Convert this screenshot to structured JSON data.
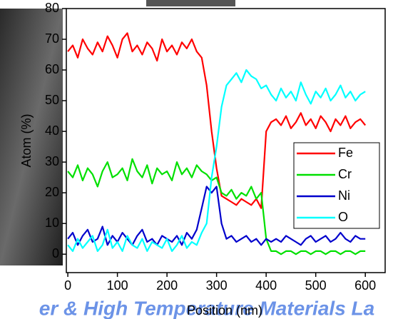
{
  "chart_data": {
    "type": "line",
    "xlabel": "Position (nm)",
    "ylabel": "Atom (%)",
    "watermark": "er & High Temperature Materials La",
    "x": [
      0,
      10,
      20,
      30,
      40,
      50,
      60,
      70,
      80,
      90,
      100,
      110,
      120,
      130,
      140,
      150,
      160,
      170,
      180,
      190,
      200,
      210,
      220,
      230,
      240,
      250,
      260,
      270,
      280,
      290,
      300,
      310,
      320,
      330,
      340,
      350,
      360,
      370,
      380,
      390,
      400,
      410,
      420,
      430,
      440,
      450,
      460,
      470,
      480,
      490,
      500,
      510,
      520,
      530,
      540,
      550,
      560,
      570,
      580,
      590,
      600
    ],
    "series": [
      {
        "name": "Fe",
        "color": "#ff0000",
        "values": [
          66,
          68,
          64,
          70,
          67,
          65,
          69,
          66,
          71,
          68,
          64,
          70,
          72,
          66,
          68,
          65,
          69,
          67,
          63,
          70,
          66,
          68,
          65,
          69,
          67,
          70,
          66,
          64,
          55,
          40,
          28,
          19,
          18,
          17,
          16,
          18,
          17,
          16,
          18,
          15,
          40,
          43,
          44,
          42,
          45,
          41,
          43,
          46,
          42,
          44,
          41,
          45,
          43,
          40,
          44,
          42,
          45,
          41,
          43,
          44,
          42
        ]
      },
      {
        "name": "Cr",
        "color": "#00e000",
        "values": [
          27,
          25,
          29,
          24,
          28,
          26,
          22,
          27,
          30,
          25,
          26,
          28,
          24,
          31,
          27,
          25,
          29,
          23,
          28,
          26,
          27,
          24,
          30,
          26,
          28,
          25,
          29,
          27,
          26,
          24,
          25,
          20,
          19,
          21,
          18,
          20,
          19,
          22,
          18,
          20,
          5,
          1,
          1,
          0,
          1,
          1,
          0,
          1,
          1,
          0,
          1,
          1,
          0,
          1,
          1,
          0,
          1,
          1,
          0,
          1,
          1
        ]
      },
      {
        "name": "Ni",
        "color": "#0000cc",
        "values": [
          5,
          7,
          3,
          6,
          8,
          4,
          5,
          9,
          3,
          6,
          4,
          7,
          5,
          3,
          6,
          8,
          4,
          5,
          3,
          6,
          5,
          4,
          6,
          3,
          7,
          5,
          8,
          15,
          22,
          20,
          22,
          10,
          5,
          6,
          4,
          5,
          6,
          4,
          5,
          3,
          5,
          4,
          5,
          4,
          6,
          5,
          4,
          3,
          5,
          6,
          4,
          5,
          6,
          4,
          5,
          7,
          5,
          4,
          6,
          5,
          5
        ]
      },
      {
        "name": "O",
        "color": "#00ffff",
        "values": [
          3,
          1,
          5,
          2,
          4,
          6,
          1,
          3,
          8,
          2,
          4,
          1,
          6,
          3,
          2,
          5,
          1,
          4,
          3,
          2,
          5,
          1,
          3,
          6,
          2,
          4,
          3,
          7,
          10,
          25,
          35,
          48,
          55,
          57,
          59,
          56,
          60,
          58,
          57,
          54,
          55,
          52,
          50,
          54,
          51,
          53,
          50,
          56,
          52,
          49,
          53,
          51,
          54,
          50,
          52,
          55,
          51,
          53,
          50,
          52,
          53
        ]
      }
    ],
    "xlim": [
      -3,
      640
    ],
    "ylim": [
      -6,
      80
    ],
    "xticks": [
      0,
      100,
      200,
      300,
      400,
      500,
      600
    ],
    "yticks": [
      0,
      10,
      20,
      30,
      40,
      50,
      60,
      70,
      80
    ],
    "legend": "right"
  }
}
